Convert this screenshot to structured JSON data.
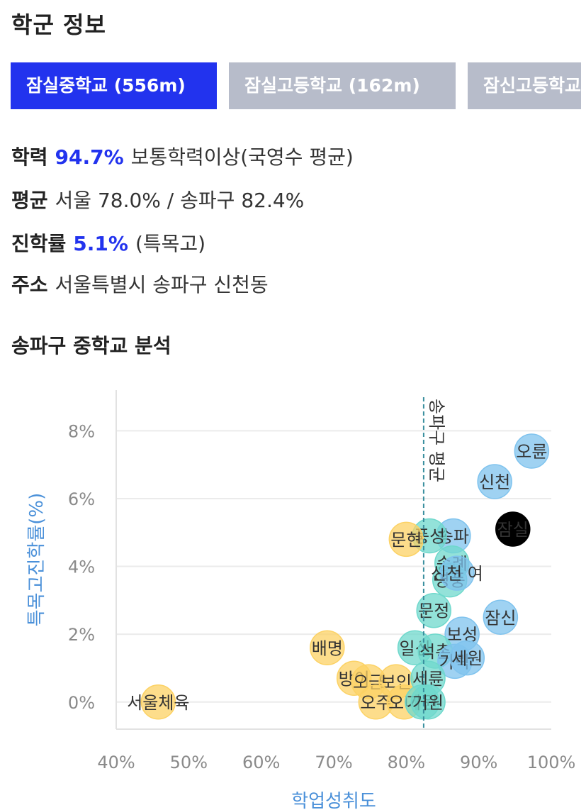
{
  "header": {
    "title": "학군 정보"
  },
  "tabs": [
    {
      "label": "잠실중학교 (556m)",
      "active": true
    },
    {
      "label": "잠실고등학교 (162m)",
      "active": false
    },
    {
      "label": "잠신고등학교",
      "active": false
    }
  ],
  "info": {
    "academic": {
      "key": "학력",
      "highlight": "94.7%",
      "text": "보통학력이상(국영수 평균)"
    },
    "average": {
      "key": "평균",
      "text": "서울 78.0% / 송파구 82.4%"
    },
    "advancement": {
      "key": "진학률",
      "highlight": "5.1%",
      "text": "(특목고)"
    },
    "address": {
      "key": "주소",
      "text": "서울특별시 송파구 신천동"
    }
  },
  "section_title": "송파구 중학교 분석",
  "colors": {
    "accent": "#2233ee",
    "blue": "#7fc3ee",
    "teal": "#6fd8cc",
    "yellow": "#fcd264",
    "black": "#000000",
    "grid": "#ebebeb",
    "axis_label": "#4a90d9"
  },
  "chart_data": {
    "type": "scatter",
    "xlabel": "학업성취도",
    "ylabel": "특목고진학률(%)",
    "xlim": [
      40,
      100
    ],
    "ylim": [
      -0.8,
      9.2
    ],
    "xticks": [
      "40%",
      "50%",
      "60%",
      "70%",
      "80%",
      "90%",
      "100%"
    ],
    "yticks": [
      "0%",
      "2%",
      "4%",
      "6%",
      "8%"
    ],
    "reference_line": {
      "x": 82.4,
      "label": "송파구 평균"
    },
    "points": [
      {
        "label": "오륜",
        "x": 97.3,
        "y": 7.4,
        "color": "blue"
      },
      {
        "label": "신천",
        "x": 92.2,
        "y": 6.5,
        "color": "blue"
      },
      {
        "label": "잠실",
        "x": 94.7,
        "y": 5.1,
        "color": "black"
      },
      {
        "label": "송파",
        "x": 86.5,
        "y": 4.9,
        "color": "blue"
      },
      {
        "label": "풍성",
        "x": 83.2,
        "y": 4.9,
        "color": "teal"
      },
      {
        "label": "문현",
        "x": 80.0,
        "y": 4.8,
        "color": "yellow"
      },
      {
        "label": "송례",
        "x": 86.3,
        "y": 4.1,
        "color": "teal"
      },
      {
        "label": "영풍",
        "x": 86.0,
        "y": 3.6,
        "color": "teal"
      },
      {
        "label": "신천 여",
        "x": 87.0,
        "y": 3.8,
        "color": "blue"
      },
      {
        "label": "잠신",
        "x": 93.0,
        "y": 2.5,
        "color": "blue"
      },
      {
        "label": "문정",
        "x": 83.8,
        "y": 2.7,
        "color": "teal"
      },
      {
        "label": "보성",
        "x": 87.7,
        "y": 2.0,
        "color": "blue"
      },
      {
        "label": "배명",
        "x": 69.1,
        "y": 1.6,
        "color": "yellow"
      },
      {
        "label": "일신",
        "x": 81.2,
        "y": 1.6,
        "color": "teal"
      },
      {
        "label": "석촌",
        "x": 84.0,
        "y": 1.5,
        "color": "teal"
      },
      {
        "label": "가락",
        "x": 86.7,
        "y": 1.2,
        "color": "blue"
      },
      {
        "label": "세원",
        "x": 88.4,
        "y": 1.3,
        "color": "blue"
      },
      {
        "label": "방이",
        "x": 72.8,
        "y": 0.7,
        "color": "yellow"
      },
      {
        "label": "오금",
        "x": 74.8,
        "y": 0.6,
        "color": "yellow"
      },
      {
        "label": "보인",
        "x": 78.6,
        "y": 0.6,
        "color": "yellow"
      },
      {
        "label": "세륜",
        "x": 83.0,
        "y": 0.7,
        "color": "teal"
      },
      {
        "label": "서울체육",
        "x": 45.8,
        "y": 0.0,
        "color": "yellow"
      },
      {
        "label": "오주",
        "x": 75.8,
        "y": 0.0,
        "color": "yellow"
      },
      {
        "label": "오마",
        "x": 79.7,
        "y": 0.0,
        "color": "yellow"
      },
      {
        "label": "가원",
        "x": 82.2,
        "y": 0.0,
        "color": "teal"
      },
      {
        "label": "거원",
        "x": 83.0,
        "y": 0.0,
        "color": "teal"
      }
    ]
  }
}
